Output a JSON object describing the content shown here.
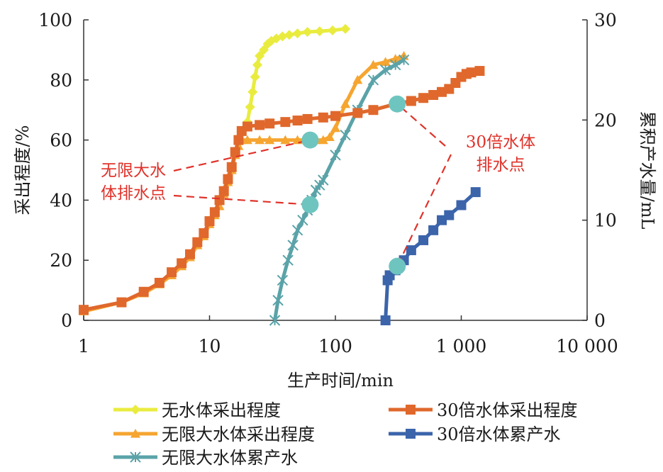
{
  "chart_data": {
    "type": "line",
    "x_scale": "log",
    "xlabel": "生产时间/min",
    "ylabel_left": "采出程度/%",
    "ylabel_right": "累积产水量/mL",
    "xlim": [
      1,
      10000
    ],
    "ylim_left": [
      0,
      100
    ],
    "ylim_right": [
      0,
      30
    ],
    "x_ticks": [
      1,
      10,
      100,
      1000,
      10000
    ],
    "x_tick_labels": [
      "1",
      "10",
      "100",
      "1 000",
      "10 000"
    ],
    "y_left_ticks": [
      0,
      20,
      40,
      60,
      80,
      100
    ],
    "y_left_tick_labels": [
      "0",
      "20",
      "40",
      "60",
      "80",
      "100"
    ],
    "y_right_ticks": [
      0,
      10,
      20,
      30
    ],
    "y_right_tick_labels": [
      "0",
      "10",
      "20",
      "30"
    ],
    "grid": false,
    "legend_position": "bottom",
    "series": [
      {
        "name": "无水体采出程度",
        "axis": "left",
        "color": "#e9ec3f",
        "marker": "diamond",
        "x": [
          20,
          21,
          22,
          23,
          24,
          25,
          27,
          29,
          31,
          34,
          38,
          43,
          50,
          60,
          75,
          95,
          120
        ],
        "y": [
          66,
          71,
          76,
          81,
          85,
          88,
          90,
          92,
          93,
          93.8,
          94.5,
          95,
          95.5,
          96,
          96.2,
          96.5,
          97
        ]
      },
      {
        "name": "无限大水体采出程度",
        "axis": "left",
        "color": "#f5a530",
        "marker": "triangle",
        "x": [
          1,
          2,
          3,
          4,
          5,
          6,
          7,
          8,
          9,
          10,
          11,
          12,
          13,
          14,
          15,
          16,
          17,
          18,
          20,
          25,
          30,
          40,
          50,
          60,
          70,
          80,
          90,
          100,
          120,
          150,
          200,
          250,
          300,
          350
        ],
        "y": [
          3,
          6,
          9,
          12,
          15,
          18,
          21,
          25,
          28,
          32,
          35,
          38,
          42,
          46,
          50,
          55,
          58,
          60,
          60,
          60,
          60,
          60,
          60,
          60,
          60,
          60,
          61,
          64,
          72,
          80,
          85,
          86,
          87,
          88
        ]
      },
      {
        "name": "无限大水体累产水",
        "axis": "right",
        "color": "#5aa3a8",
        "marker": "star",
        "x": [
          33,
          35,
          38,
          42,
          46,
          50,
          55,
          60,
          65,
          70,
          75,
          80,
          100,
          120,
          150,
          200,
          250,
          300,
          350
        ],
        "y": [
          0,
          2,
          4,
          6,
          7.5,
          9,
          10,
          11,
          12,
          13,
          13.5,
          14,
          16.5,
          18.5,
          21,
          24,
          25,
          25.5,
          26
        ]
      },
      {
        "name": "30倍水体采出程度",
        "axis": "left",
        "color": "#e0682c",
        "marker": "square",
        "x": [
          1,
          2,
          3,
          4,
          5,
          6,
          7,
          8,
          9,
          10,
          11,
          12,
          13,
          14,
          15,
          16,
          17,
          18,
          20,
          25,
          30,
          40,
          50,
          60,
          80,
          100,
          150,
          200,
          300,
          400,
          500,
          600,
          700,
          800,
          900,
          1000,
          1100,
          1200,
          1400
        ],
        "y": [
          3.5,
          6,
          9.5,
          12.5,
          16,
          19,
          22,
          26,
          29,
          33,
          36,
          40,
          43,
          47,
          51,
          56,
          60,
          63,
          64.5,
          65,
          65.5,
          66,
          66.5,
          67,
          67.5,
          68,
          69,
          70,
          72,
          73,
          74,
          75,
          76,
          77,
          79,
          81,
          82,
          82.5,
          83
        ]
      },
      {
        "name": "30倍水体累产水",
        "axis": "right",
        "color": "#3b64aa",
        "marker": "square",
        "x": [
          250,
          260,
          270,
          300,
          350,
          400,
          500,
          600,
          700,
          800,
          1000,
          1300
        ],
        "y": [
          0,
          4,
          4.5,
          5,
          6,
          7,
          8,
          9,
          10,
          10.5,
          11.5,
          12.8
        ]
      }
    ],
    "annotations": [
      {
        "text_lines": [
          "无限大水",
          "体排水点"
        ],
        "color": "#e0322a",
        "points": [
          {
            "x": 63,
            "axis": "left",
            "y": 60
          },
          {
            "x": 63,
            "axis": "left",
            "y": 38.5
          }
        ]
      },
      {
        "text_lines": [
          "30倍水体",
          "排水点"
        ],
        "color": "#e0322a",
        "points": [
          {
            "x": 310,
            "axis": "left",
            "y": 72
          },
          {
            "x": 310,
            "axis": "left",
            "y": 18
          }
        ]
      }
    ]
  }
}
